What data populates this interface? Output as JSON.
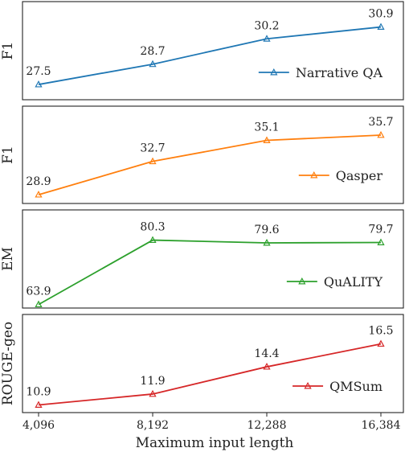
{
  "chart_data": {
    "type": "line",
    "xlabel": "Maximum input length",
    "x": [
      4096,
      8192,
      12288,
      16384
    ],
    "x_tick_labels": [
      "4,096",
      "8,192",
      "12,288",
      "16,384"
    ],
    "panels": [
      {
        "ylabel": "F1",
        "series": [
          {
            "name": "Narrative QA",
            "values": [
              27.5,
              28.7,
              30.2,
              30.9
            ],
            "labels": [
              "27.5",
              "28.7",
              "30.2",
              "30.9"
            ],
            "color": "#1f77b4"
          }
        ],
        "ylim": [
          26.6,
          32.4
        ],
        "legend_position": "lower-right"
      },
      {
        "ylabel": "F1",
        "series": [
          {
            "name": "Qasper",
            "values": [
              28.9,
              32.7,
              35.1,
              35.7
            ],
            "labels": [
              "28.9",
              "32.7",
              "35.1",
              "35.7"
            ],
            "color": "#ff7f0e"
          }
        ],
        "ylim": [
          27.9,
          39.0
        ],
        "legend_position": "lower-right"
      },
      {
        "ylabel": "EM",
        "series": [
          {
            "name": "QuALITY",
            "values": [
              63.9,
              80.3,
              79.6,
              79.7
            ],
            "labels": [
              "63.9",
              "80.3",
              "79.6",
              "79.7"
            ],
            "color": "#2ca02c"
          }
        ],
        "ylim": [
          63.0,
          88.0
        ],
        "legend_position": "lower-right"
      },
      {
        "ylabel": "ROUGE-geo",
        "series": [
          {
            "name": "QMSum",
            "values": [
              10.9,
              11.9,
              14.4,
              16.5
            ],
            "labels": [
              "10.9",
              "11.9",
              "14.4",
              "16.5"
            ],
            "color": "#d62728"
          }
        ],
        "ylim": [
          10.2,
          19.2
        ],
        "legend_position": "lower-right"
      }
    ],
    "grid": false,
    "marker": "triangle"
  }
}
